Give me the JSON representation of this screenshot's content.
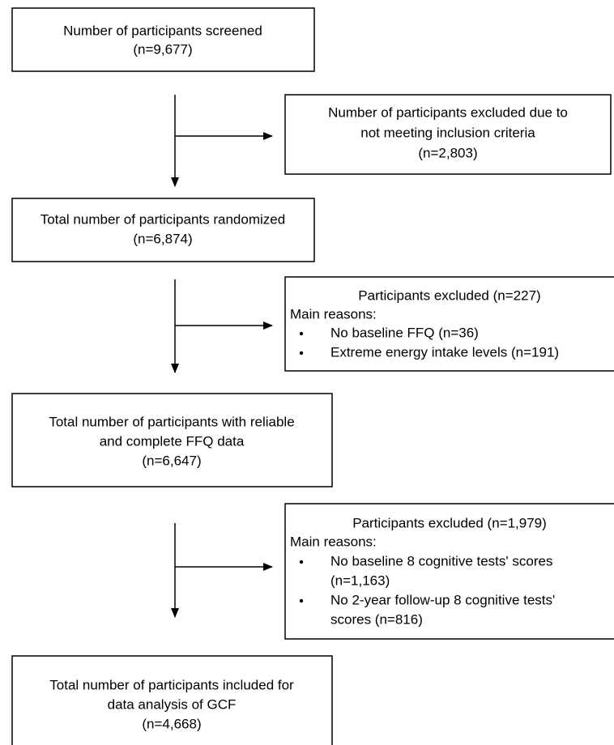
{
  "nodes": [
    {
      "lines": [
        "Number of participants screened",
        "(n=9,677)"
      ]
    },
    {
      "lines": [
        "Number of participants excluded due to",
        "not meeting inclusion criteria",
        "(n=2,803)"
      ]
    },
    {
      "lines": [
        "Total number of participants randomized",
        "(n=6,874)"
      ]
    },
    {
      "title": "Participants excluded (n=227)",
      "intro": "Main reasons:",
      "bullets": [
        [
          "No baseline FFQ (n=36)"
        ],
        [
          "Extreme energy intake levels (n=191)"
        ]
      ]
    },
    {
      "lines": [
        "Total number of participants with reliable",
        "and complete FFQ data",
        "(n=6,647)"
      ]
    },
    {
      "title": "Participants excluded (n=1,979)",
      "intro": "Main reasons:",
      "bullets": [
        [
          "No baseline 8 cognitive tests' scores",
          "(n=1,163)"
        ],
        [
          "No 2-year follow-up 8 cognitive tests'",
          "scores (n=816)"
        ]
      ]
    },
    {
      "lines": [
        "Total number of participants included for",
        "data analysis of GCF",
        "(n=4,668)"
      ]
    }
  ]
}
